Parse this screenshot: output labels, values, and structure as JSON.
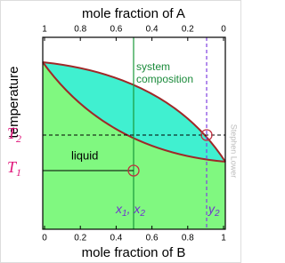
{
  "top_axis": {
    "label": "mole fraction of A",
    "ticks": [
      "1",
      "0.8",
      "0.6",
      "0.4",
      "0.2",
      "0"
    ]
  },
  "bottom_axis": {
    "label": "mole fraction of B",
    "ticks": [
      "0",
      "0.2",
      "0.4",
      "0.6",
      "0.8",
      "1"
    ]
  },
  "y_axis_label": "temperature",
  "labels": {
    "t2": {
      "base": "T",
      "sub": "2"
    },
    "t1": {
      "base": "T",
      "sub": "1"
    },
    "liquid": "liquid",
    "system_composition": [
      "system",
      "composition"
    ],
    "x1x2": {
      "a": "x",
      "a_sub": "1",
      "b": ", x",
      "b_sub": "2"
    },
    "y2": {
      "base": "y",
      "sub": "2"
    }
  },
  "credit": "Stephen Lower"
}
